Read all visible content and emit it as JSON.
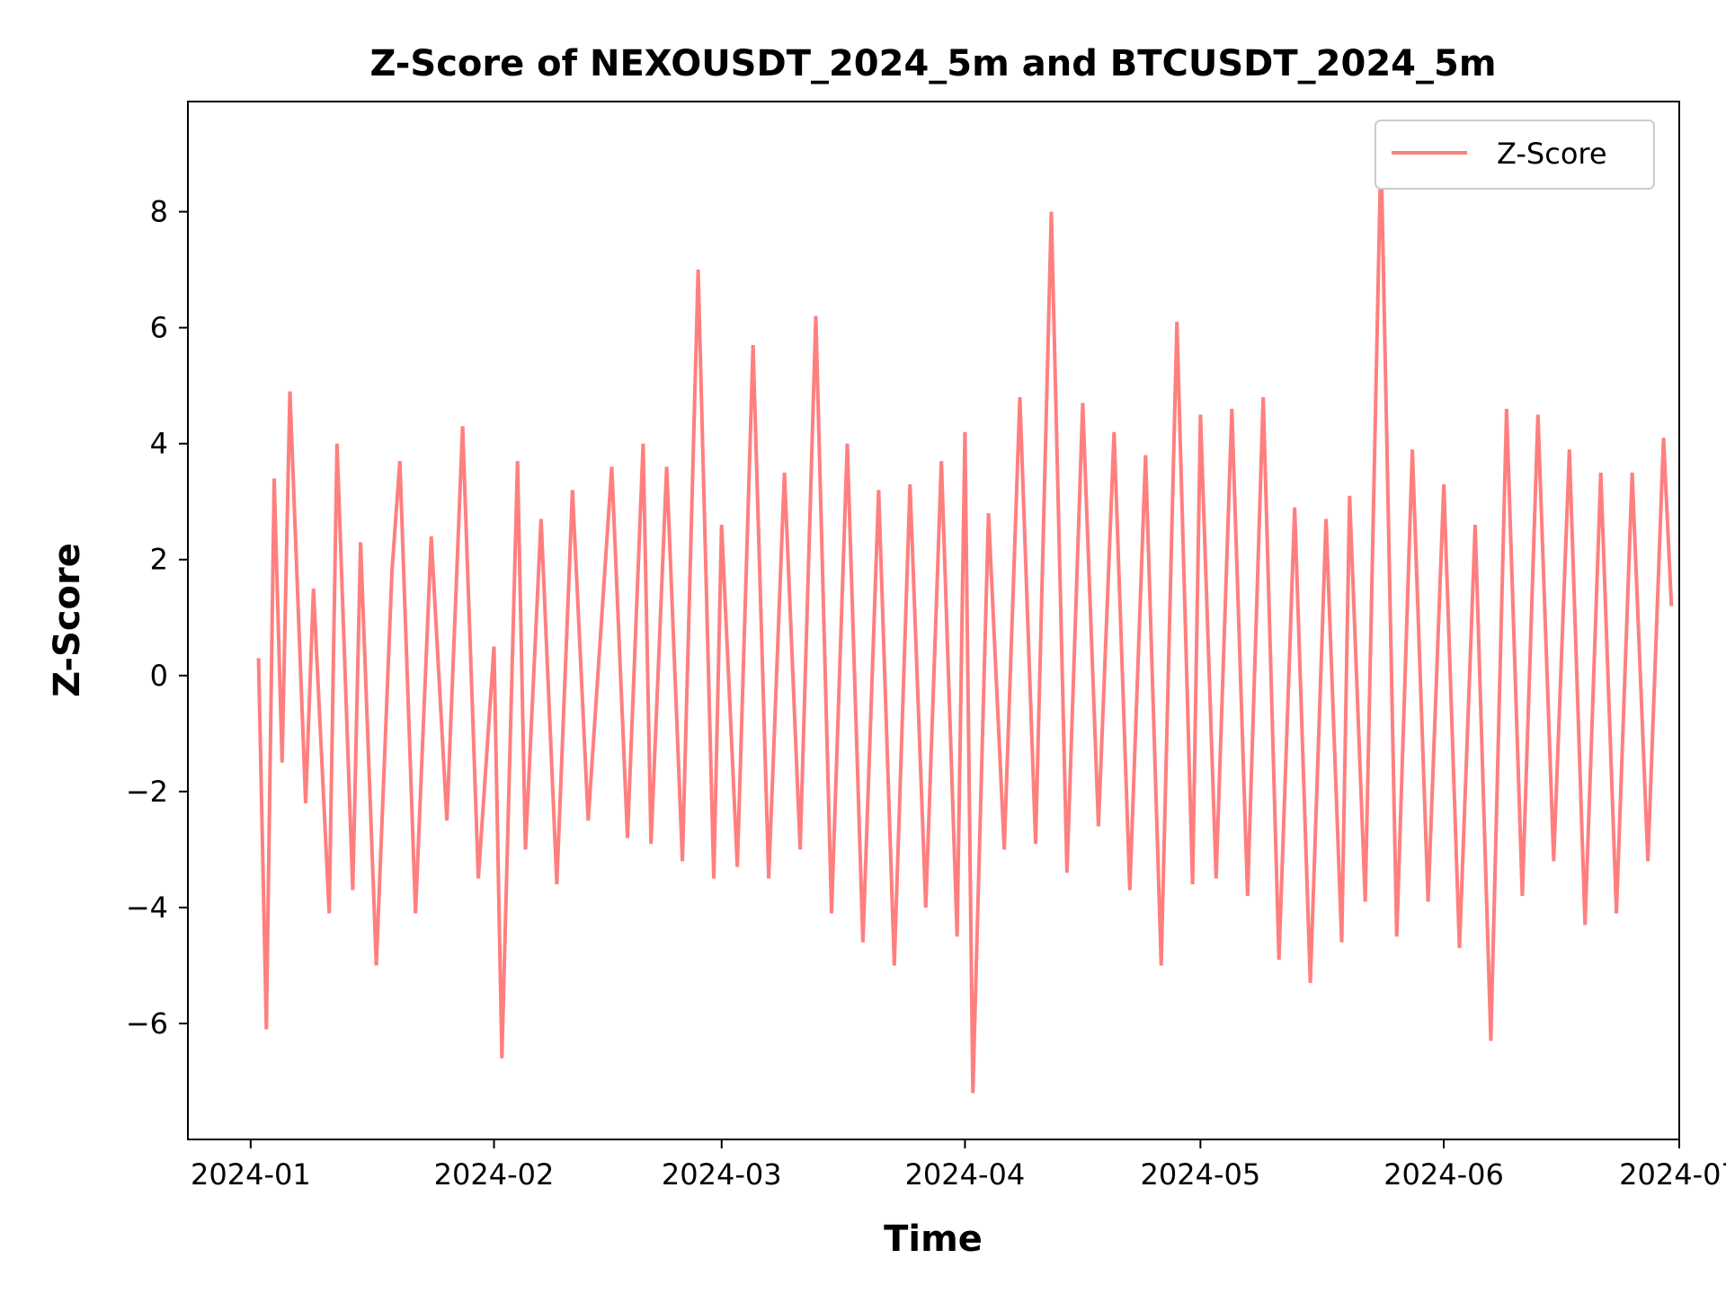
{
  "chart_data": {
    "type": "line",
    "title": "Z-Score of NEXOUSDT_2024_5m and BTCUSDT_2024_5m",
    "xlabel": "Time",
    "ylabel": "Z-Score",
    "xlim": [
      "2023-12-24",
      "2024-07-01"
    ],
    "ylim": [
      -8.0,
      9.9
    ],
    "xticks": [
      {
        "label": "2024-01",
        "value": "2024-01-01"
      },
      {
        "label": "2024-02",
        "value": "2024-02-01"
      },
      {
        "label": "2024-03",
        "value": "2024-03-01"
      },
      {
        "label": "2024-04",
        "value": "2024-04-01"
      },
      {
        "label": "2024-05",
        "value": "2024-05-01"
      },
      {
        "label": "2024-06",
        "value": "2024-06-01"
      },
      {
        "label": "2024-07",
        "value": "2024-07-01"
      }
    ],
    "yticks": [
      {
        "label": "−6",
        "value": -6
      },
      {
        "label": "−4",
        "value": -4
      },
      {
        "label": "−2",
        "value": -2
      },
      {
        "label": "0",
        "value": 0
      },
      {
        "label": "2",
        "value": 2
      },
      {
        "label": "4",
        "value": 4
      },
      {
        "label": "6",
        "value": 6
      },
      {
        "label": "8",
        "value": 8
      }
    ],
    "grid": false,
    "legend": {
      "position": "top-right",
      "entries": [
        "Z-Score"
      ]
    },
    "series": [
      {
        "name": "Z-Score",
        "color": "#ff7f7f",
        "x": [
          "2024-01-02",
          "2024-01-03",
          "2024-01-04",
          "2024-01-05",
          "2024-01-06",
          "2024-01-08",
          "2024-01-09",
          "2024-01-11",
          "2024-01-12",
          "2024-01-14",
          "2024-01-15",
          "2024-01-17",
          "2024-01-19",
          "2024-01-20",
          "2024-01-22",
          "2024-01-24",
          "2024-01-26",
          "2024-01-28",
          "2024-01-30",
          "2024-02-01",
          "2024-02-02",
          "2024-02-04",
          "2024-02-05",
          "2024-02-07",
          "2024-02-09",
          "2024-02-11",
          "2024-02-13",
          "2024-02-16",
          "2024-02-18",
          "2024-02-20",
          "2024-02-21",
          "2024-02-23",
          "2024-02-25",
          "2024-02-27",
          "2024-02-29",
          "2024-03-01",
          "2024-03-03",
          "2024-03-05",
          "2024-03-07",
          "2024-03-09",
          "2024-03-11",
          "2024-03-13",
          "2024-03-15",
          "2024-03-17",
          "2024-03-19",
          "2024-03-21",
          "2024-03-23",
          "2024-03-25",
          "2024-03-27",
          "2024-03-29",
          "2024-03-31",
          "2024-04-01",
          "2024-04-02",
          "2024-04-04",
          "2024-04-06",
          "2024-04-08",
          "2024-04-10",
          "2024-04-12",
          "2024-04-14",
          "2024-04-16",
          "2024-04-18",
          "2024-04-20",
          "2024-04-22",
          "2024-04-24",
          "2024-04-26",
          "2024-04-28",
          "2024-04-30",
          "2024-05-01",
          "2024-05-03",
          "2024-05-05",
          "2024-05-07",
          "2024-05-09",
          "2024-05-11",
          "2024-05-13",
          "2024-05-15",
          "2024-05-17",
          "2024-05-19",
          "2024-05-20",
          "2024-05-22",
          "2024-05-24",
          "2024-05-26",
          "2024-05-28",
          "2024-05-30",
          "2024-06-01",
          "2024-06-03",
          "2024-06-05",
          "2024-06-07",
          "2024-06-09",
          "2024-06-11",
          "2024-06-13",
          "2024-06-15",
          "2024-06-17",
          "2024-06-19",
          "2024-06-21",
          "2024-06-23",
          "2024-06-25",
          "2024-06-27",
          "2024-06-29",
          "2024-06-30"
        ],
        "y": [
          0.3,
          -6.1,
          3.4,
          -1.5,
          4.9,
          -2.2,
          1.5,
          -4.1,
          4.0,
          -3.7,
          2.3,
          -5.0,
          1.8,
          3.7,
          -4.1,
          2.4,
          -2.5,
          4.3,
          -3.5,
          0.5,
          -6.6,
          3.7,
          -3.0,
          2.7,
          -3.6,
          3.2,
          -2.5,
          3.6,
          -2.8,
          4.0,
          -2.9,
          3.6,
          -3.2,
          7.0,
          -3.5,
          2.6,
          -3.3,
          5.7,
          -3.5,
          3.5,
          -3.0,
          6.2,
          -4.1,
          4.0,
          -4.6,
          3.2,
          -5.0,
          3.3,
          -4.0,
          3.7,
          -4.5,
          4.2,
          -7.2,
          2.8,
          -3.0,
          4.8,
          -2.9,
          8.0,
          -3.4,
          4.7,
          -2.6,
          4.2,
          -3.7,
          3.8,
          -5.0,
          6.1,
          -3.6,
          4.5,
          -3.5,
          4.6,
          -3.8,
          4.8,
          -4.9,
          2.9,
          -5.3,
          2.7,
          -4.6,
          3.1,
          -3.9,
          9.1,
          -4.5,
          3.9,
          -3.9,
          3.3,
          -4.7,
          2.6,
          -6.3,
          4.6,
          -3.8,
          4.5,
          -3.2,
          3.9,
          -4.3,
          3.5,
          -4.1,
          3.5,
          -3.2,
          4.1,
          1.2
        ]
      }
    ]
  }
}
